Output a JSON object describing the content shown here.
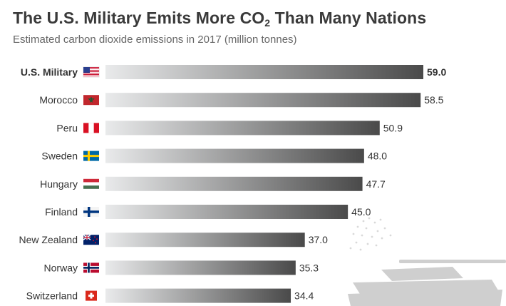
{
  "header": {
    "title_pre": "The U.S. Military Emits More CO",
    "title_sub": "2",
    "title_post": " Than Many Nations",
    "subtitle": "Estimated carbon dioxide emissions in 2017 (million tonnes)"
  },
  "colors": {
    "bar_start": "#e9eaeb",
    "bar_end": "#4a4a4a",
    "text": "#333333"
  },
  "chart_data": {
    "type": "bar",
    "orientation": "horizontal",
    "title": "The U.S. Military Emits More CO2 Than Many Nations",
    "subtitle": "Estimated carbon dioxide emissions in 2017 (million tonnes)",
    "unit": "million tonnes",
    "categories": [
      "U.S. Military",
      "Morocco",
      "Peru",
      "Sweden",
      "Hungary",
      "Finland",
      "New Zealand",
      "Norway",
      "Switzerland"
    ],
    "values": [
      59.0,
      58.5,
      50.9,
      48.0,
      47.7,
      45.0,
      37.0,
      35.3,
      34.4
    ],
    "value_labels": [
      "59.0",
      "58.5",
      "50.9",
      "48.0",
      "47.7",
      "45.0",
      "37.0",
      "35.3",
      "34.4"
    ],
    "flags": [
      "us-flag",
      "morocco-flag",
      "peru-flag",
      "sweden-flag",
      "hungary-flag",
      "finland-flag",
      "new-zealand-flag",
      "norway-flag",
      "switzerland-flag"
    ],
    "highlight": "U.S. Military",
    "xlim": [
      0,
      59.0
    ]
  }
}
